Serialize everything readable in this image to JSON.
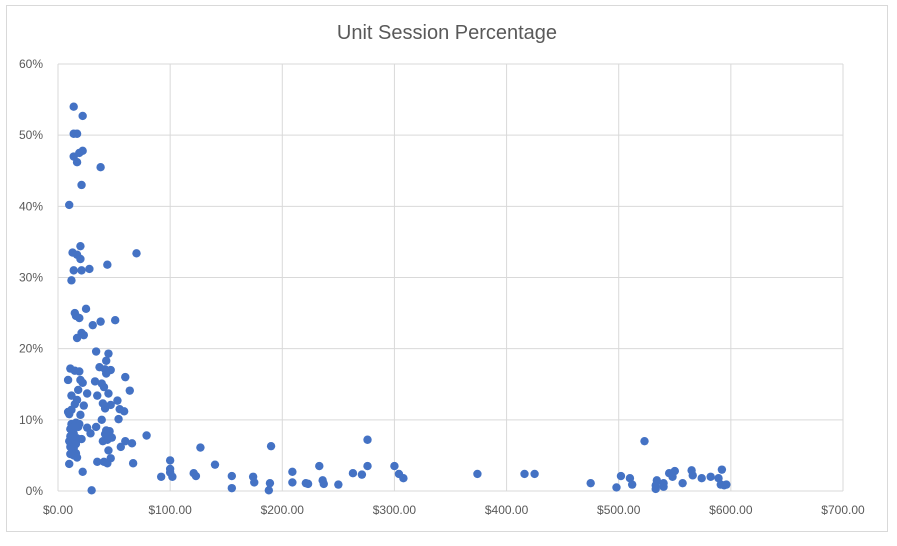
{
  "chart_data": {
    "type": "scatter",
    "title": "Unit Session Percentage",
    "xlabel": "",
    "ylabel": "",
    "xlim": [
      0,
      700
    ],
    "ylim": [
      0,
      0.6
    ],
    "x_ticks": [
      0,
      100,
      200,
      300,
      400,
      500,
      600,
      700
    ],
    "x_tick_labels": [
      "$0.00",
      "$100.00",
      "$200.00",
      "$300.00",
      "$400.00",
      "$500.00",
      "$600.00",
      "$700.00"
    ],
    "y_ticks": [
      0,
      0.1,
      0.2,
      0.3,
      0.4,
      0.5,
      0.6
    ],
    "y_tick_labels": [
      "0%",
      "10%",
      "20%",
      "30%",
      "40%",
      "50%",
      "60%"
    ],
    "grid": true,
    "legend": "none",
    "marker_color": "#4472c4",
    "points": [
      [
        14,
        0.54
      ],
      [
        22,
        0.527
      ],
      [
        14,
        0.502
      ],
      [
        17,
        0.502
      ],
      [
        22,
        0.478
      ],
      [
        19,
        0.475
      ],
      [
        14,
        0.47
      ],
      [
        17,
        0.462
      ],
      [
        38,
        0.455
      ],
      [
        21,
        0.43
      ],
      [
        10,
        0.402
      ],
      [
        20,
        0.344
      ],
      [
        13,
        0.335
      ],
      [
        17,
        0.332
      ],
      [
        70,
        0.334
      ],
      [
        20,
        0.326
      ],
      [
        44,
        0.318
      ],
      [
        14,
        0.31
      ],
      [
        21,
        0.31
      ],
      [
        28,
        0.312
      ],
      [
        12,
        0.296
      ],
      [
        25,
        0.256
      ],
      [
        15,
        0.25
      ],
      [
        16,
        0.246
      ],
      [
        19,
        0.243
      ],
      [
        38,
        0.238
      ],
      [
        51,
        0.24
      ],
      [
        31,
        0.233
      ],
      [
        21,
        0.222
      ],
      [
        23,
        0.219
      ],
      [
        17,
        0.215
      ],
      [
        34,
        0.196
      ],
      [
        45,
        0.193
      ],
      [
        43,
        0.183
      ],
      [
        11,
        0.172
      ],
      [
        15,
        0.169
      ],
      [
        19,
        0.168
      ],
      [
        37,
        0.174
      ],
      [
        42,
        0.171
      ],
      [
        47,
        0.17
      ],
      [
        43,
        0.165
      ],
      [
        9,
        0.156
      ],
      [
        20,
        0.156
      ],
      [
        22,
        0.152
      ],
      [
        33,
        0.154
      ],
      [
        39,
        0.151
      ],
      [
        60,
        0.16
      ],
      [
        41,
        0.146
      ],
      [
        18,
        0.142
      ],
      [
        64,
        0.141
      ],
      [
        12,
        0.134
      ],
      [
        26,
        0.137
      ],
      [
        35,
        0.134
      ],
      [
        45,
        0.137
      ],
      [
        17,
        0.128
      ],
      [
        15,
        0.122
      ],
      [
        23,
        0.12
      ],
      [
        40,
        0.123
      ],
      [
        47,
        0.121
      ],
      [
        53,
        0.127
      ],
      [
        42,
        0.116
      ],
      [
        55,
        0.115
      ],
      [
        12,
        0.114
      ],
      [
        9,
        0.111
      ],
      [
        10,
        0.108
      ],
      [
        20,
        0.107
      ],
      [
        59,
        0.112
      ],
      [
        54,
        0.101
      ],
      [
        39,
        0.1
      ],
      [
        12,
        0.094
      ],
      [
        16,
        0.096
      ],
      [
        19,
        0.094
      ],
      [
        11,
        0.087
      ],
      [
        15,
        0.091
      ],
      [
        18,
        0.09
      ],
      [
        26,
        0.089
      ],
      [
        34,
        0.09
      ],
      [
        46,
        0.084
      ],
      [
        43,
        0.085
      ],
      [
        14,
        0.081
      ],
      [
        29,
        0.081
      ],
      [
        42,
        0.08
      ],
      [
        11,
        0.077
      ],
      [
        17,
        0.074
      ],
      [
        21,
        0.073
      ],
      [
        79,
        0.078
      ],
      [
        48,
        0.075
      ],
      [
        44,
        0.072
      ],
      [
        40,
        0.07
      ],
      [
        10,
        0.07
      ],
      [
        13,
        0.067
      ],
      [
        16,
        0.066
      ],
      [
        60,
        0.07
      ],
      [
        66,
        0.067
      ],
      [
        11,
        0.062
      ],
      [
        14,
        0.06
      ],
      [
        56,
        0.062
      ],
      [
        45,
        0.057
      ],
      [
        13,
        0.056
      ],
      [
        16,
        0.053
      ],
      [
        11,
        0.052
      ],
      [
        14,
        0.05
      ],
      [
        17,
        0.047
      ],
      [
        47,
        0.046
      ],
      [
        100,
        0.043
      ],
      [
        41,
        0.041
      ],
      [
        35,
        0.041
      ],
      [
        44,
        0.039
      ],
      [
        67,
        0.039
      ],
      [
        10,
        0.038
      ],
      [
        140,
        0.037
      ],
      [
        100,
        0.031
      ],
      [
        22,
        0.027
      ],
      [
        100,
        0.026
      ],
      [
        121,
        0.025
      ],
      [
        92,
        0.02
      ],
      [
        102,
        0.02
      ],
      [
        123,
        0.021
      ],
      [
        127,
        0.061
      ],
      [
        155,
        0.021
      ],
      [
        174,
        0.02
      ],
      [
        190,
        0.063
      ],
      [
        209,
        0.027
      ],
      [
        233,
        0.035
      ],
      [
        209,
        0.012
      ],
      [
        221,
        0.011
      ],
      [
        223,
        0.01
      ],
      [
        236,
        0.015
      ],
      [
        237,
        0.01
      ],
      [
        250,
        0.009
      ],
      [
        263,
        0.025
      ],
      [
        276,
        0.072
      ],
      [
        276,
        0.035
      ],
      [
        271,
        0.023
      ],
      [
        300,
        0.035
      ],
      [
        304,
        0.024
      ],
      [
        308,
        0.018
      ],
      [
        374,
        0.024
      ],
      [
        416,
        0.024
      ],
      [
        425,
        0.024
      ],
      [
        475,
        0.011
      ],
      [
        498,
        0.005
      ],
      [
        502,
        0.021
      ],
      [
        510,
        0.018
      ],
      [
        512,
        0.009
      ],
      [
        523,
        0.07
      ],
      [
        534,
        0.015
      ],
      [
        533,
        0.008
      ],
      [
        533,
        0.003
      ],
      [
        540,
        0.006
      ],
      [
        540,
        0.011
      ],
      [
        545,
        0.025
      ],
      [
        548,
        0.02
      ],
      [
        550,
        0.028
      ],
      [
        557,
        0.011
      ],
      [
        565,
        0.029
      ],
      [
        566,
        0.022
      ],
      [
        574,
        0.018
      ],
      [
        582,
        0.02
      ],
      [
        589,
        0.018
      ],
      [
        592,
        0.03
      ],
      [
        591,
        0.009
      ],
      [
        594,
        0.008
      ],
      [
        596,
        0.009
      ],
      [
        155,
        0.004
      ],
      [
        175,
        0.012
      ],
      [
        189,
        0.011
      ],
      [
        188,
        0.001
      ],
      [
        30,
        0.001
      ]
    ]
  }
}
